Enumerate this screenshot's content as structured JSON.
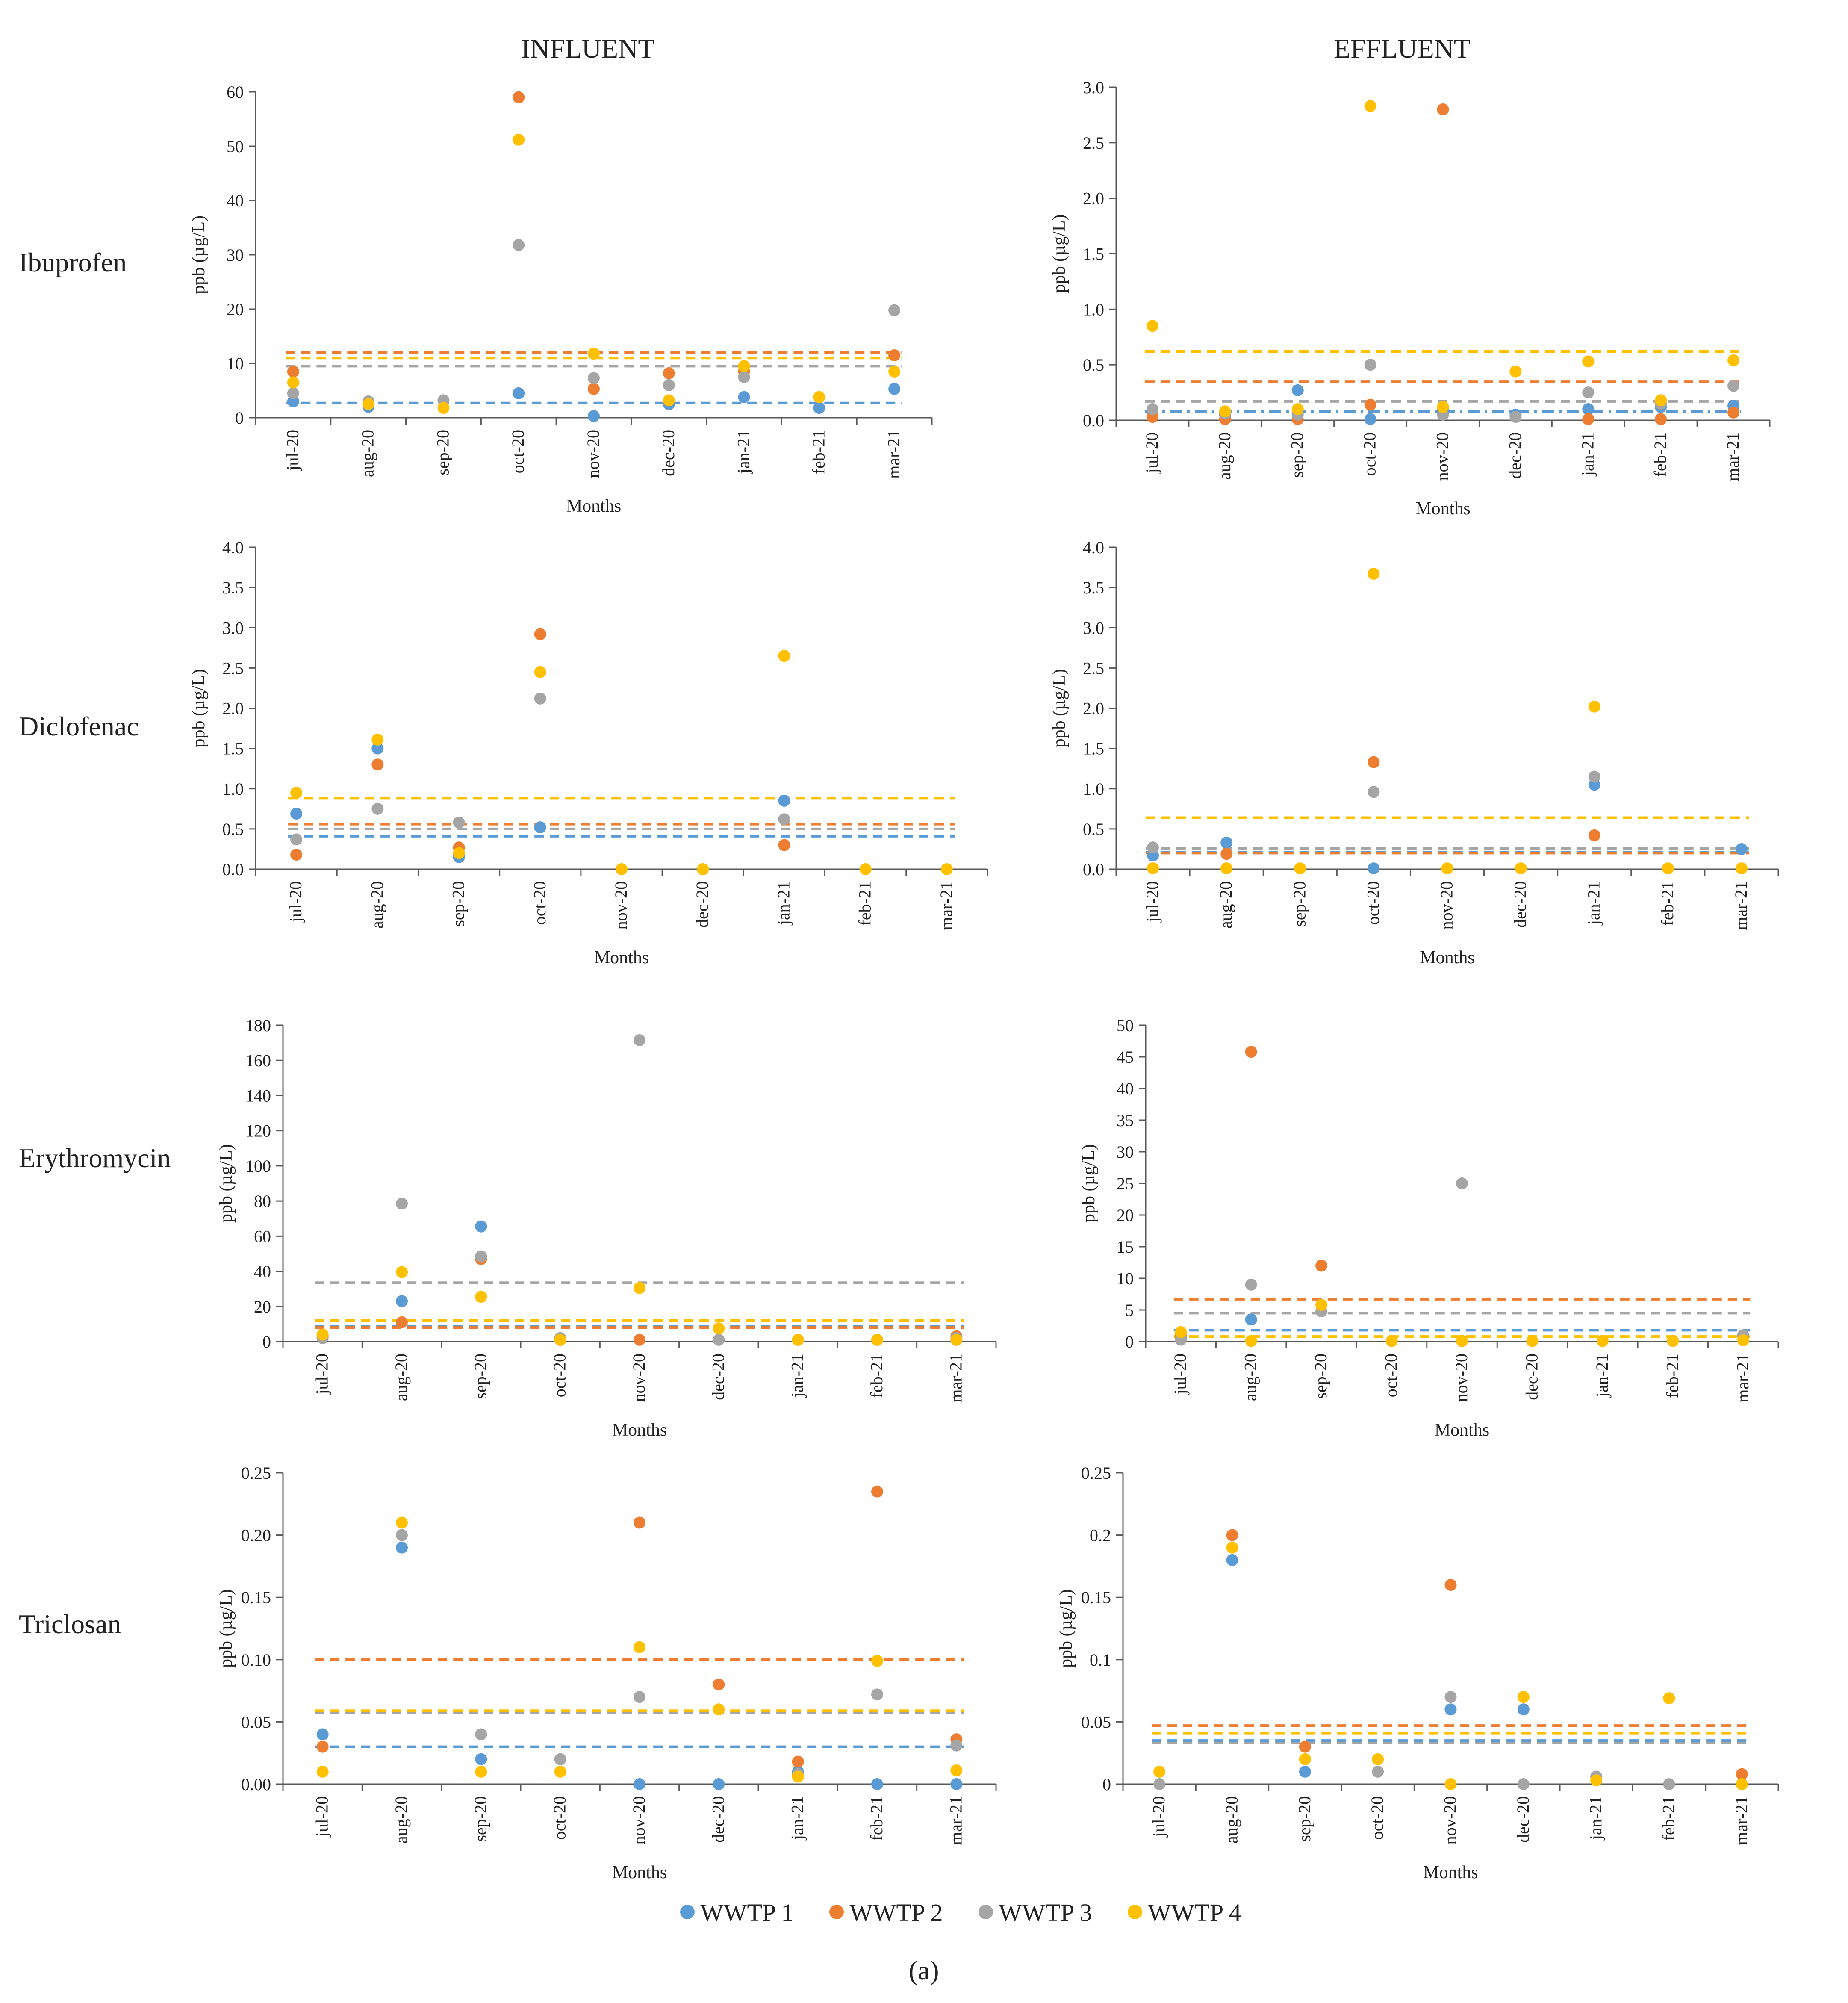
{
  "column_headers": [
    "INFLUENT",
    "EFFLUENT"
  ],
  "row_labels": [
    "Ibuprofen",
    "Diclofenac",
    "Erythromycin",
    "Triclosan"
  ],
  "caption": "(a)",
  "colors": {
    "WWTP 1": "#5b9bd5",
    "WWTP 2": "#ed7d31",
    "WWTP 3": "#a5a5a5",
    "WWTP 4": "#ffc000"
  },
  "legend": [
    "WWTP 1",
    "WWTP 2",
    "WWTP 3",
    "WWTP 4"
  ],
  "chart_data": [
    {
      "id": "ibuprofen-influent",
      "type": "scatter",
      "title": "Ibuprofen INFLUENT",
      "categories": [
        "jul-20",
        "aug-20",
        "sep-20",
        "oct-20",
        "nov-20",
        "dec-20",
        "jan-21",
        "feb-21",
        "mar-21"
      ],
      "xlabel": "Months",
      "ylabel": "ppb (µg/L)",
      "ylim": [
        0,
        60
      ],
      "yticks": [
        "0",
        "10",
        "20",
        "30",
        "40",
        "50",
        "60"
      ],
      "series": [
        {
          "name": "WWTP 1",
          "values": [
            3,
            2,
            null,
            4.5,
            0.3,
            2.5,
            3.8,
            1.8,
            5.3
          ],
          "mean": 2.7,
          "dash": "dash"
        },
        {
          "name": "WWTP 2",
          "values": [
            8.5,
            null,
            null,
            59,
            5.3,
            8.2,
            8.5,
            null,
            11.5
          ],
          "mean": 12,
          "dash": "dash"
        },
        {
          "name": "WWTP 3",
          "values": [
            4.5,
            3,
            3.2,
            31.8,
            7.3,
            6,
            7.5,
            null,
            19.8
          ],
          "mean": 9.5,
          "dash": "dash"
        },
        {
          "name": "WWTP 4",
          "values": [
            6.5,
            2.5,
            1.8,
            51.2,
            11.8,
            3.2,
            9.5,
            3.8,
            8.5
          ],
          "mean": 11,
          "dash": "dash"
        }
      ]
    },
    {
      "id": "ibuprofen-effluent",
      "type": "scatter",
      "title": "Ibuprofen EFFLUENT",
      "categories": [
        "jul-20",
        "aug-20",
        "sep-20",
        "oct-20",
        "nov-20",
        "dec-20",
        "jan-21",
        "feb-21",
        "mar-21"
      ],
      "xlabel": "Months",
      "ylabel": "ppb (µg/L)",
      "ylim": [
        0,
        3
      ],
      "yticks": [
        "0.0",
        "0.5",
        "1.0",
        "1.5",
        "2.0",
        "2.5",
        "3.0"
      ],
      "series": [
        {
          "name": "WWTP 1",
          "values": [
            0.06,
            0.05,
            0.27,
            0.01,
            0.1,
            0.05,
            0.1,
            0.12,
            0.13
          ],
          "mean": 0.08,
          "dash": "dashdot"
        },
        {
          "name": "WWTP 2",
          "values": [
            0.03,
            0.01,
            0.01,
            0.14,
            2.8,
            null,
            0.01,
            0.01,
            0.07
          ],
          "mean": 0.35,
          "dash": "dash"
        },
        {
          "name": "WWTP 3",
          "values": [
            0.1,
            0.06,
            0.05,
            0.5,
            0.05,
            0.03,
            0.25,
            0.15,
            0.31
          ],
          "mean": 0.17,
          "dash": "dash"
        },
        {
          "name": "WWTP 4",
          "values": [
            0.85,
            0.08,
            0.1,
            2.83,
            0.12,
            0.44,
            0.53,
            0.18,
            0.54
          ],
          "mean": 0.62,
          "dash": "dash"
        }
      ]
    },
    {
      "id": "diclofenac-influent",
      "type": "scatter",
      "title": "Diclofenac INFLUENT",
      "categories": [
        "jul-20",
        "aug-20",
        "sep-20",
        "oct-20",
        "nov-20",
        "dec-20",
        "jan-21",
        "feb-21",
        "mar-21"
      ],
      "xlabel": "Months",
      "ylabel": "ppb (µg/L)",
      "ylim": [
        0,
        4
      ],
      "yticks": [
        "0.0",
        "0.5",
        "1.0",
        "1.5",
        "2.0",
        "2.5",
        "3.0",
        "3.5",
        "4.0"
      ],
      "series": [
        {
          "name": "WWTP 1",
          "values": [
            0.69,
            1.5,
            0.15,
            0.52,
            null,
            null,
            0.85,
            null,
            null
          ],
          "mean": 0.41,
          "dash": "dash"
        },
        {
          "name": "WWTP 2",
          "values": [
            0.18,
            1.3,
            0.27,
            2.92,
            null,
            null,
            0.3,
            null,
            null
          ],
          "mean": 0.56,
          "dash": "dash"
        },
        {
          "name": "WWTP 3",
          "values": [
            0.37,
            0.75,
            0.58,
            2.12,
            null,
            null,
            0.62,
            null,
            null
          ],
          "mean": 0.5,
          "dash": "dash"
        },
        {
          "name": "WWTP 4",
          "values": [
            0.95,
            1.61,
            0.2,
            2.45,
            0,
            0,
            2.65,
            0,
            0
          ],
          "mean": 0.88,
          "dash": "dash"
        }
      ]
    },
    {
      "id": "diclofenac-effluent",
      "type": "scatter",
      "title": "Diclofenac EFFLUENT",
      "categories": [
        "jul-20",
        "aug-20",
        "sep-20",
        "oct-20",
        "nov-20",
        "dec-20",
        "jan-21",
        "feb-21",
        "mar-21"
      ],
      "xlabel": "Months",
      "ylabel": "ppb (µg/L)",
      "ylim": [
        0,
        4
      ],
      "yticks": [
        "0.0",
        "0.5",
        "1.0",
        "1.5",
        "2.0",
        "2.5",
        "3.0",
        "3.5",
        "4.0"
      ],
      "series": [
        {
          "name": "WWTP 1",
          "values": [
            0.17,
            0.33,
            null,
            0.01,
            null,
            null,
            1.05,
            null,
            0.25
          ],
          "mean": 0.21,
          "dash": "dash"
        },
        {
          "name": "WWTP 2",
          "values": [
            null,
            0.19,
            null,
            1.33,
            null,
            null,
            0.42,
            null,
            null
          ],
          "mean": 0.2,
          "dash": "dash"
        },
        {
          "name": "WWTP 3",
          "values": [
            0.27,
            null,
            null,
            0.96,
            null,
            null,
            1.15,
            null,
            null
          ],
          "mean": 0.26,
          "dash": "dash"
        },
        {
          "name": "WWTP 4",
          "values": [
            0.01,
            0.01,
            0.01,
            3.67,
            0.01,
            0.01,
            2.02,
            0.01,
            0.01
          ],
          "mean": 0.64,
          "dash": "dash"
        }
      ]
    },
    {
      "id": "erythromycin-influent",
      "type": "scatter",
      "title": "Erythromycin INFLUENT",
      "categories": [
        "jul-20",
        "aug-20",
        "sep-20",
        "oct-20",
        "nov-20",
        "dec-20",
        "jan-21",
        "feb-21",
        "mar-21"
      ],
      "xlabel": "Months",
      "ylabel": "ppb (µg/L)",
      "ylim": [
        0,
        180
      ],
      "yticks": [
        "0",
        "20",
        "40",
        "60",
        "80",
        "100",
        "120",
        "140",
        "160",
        "180"
      ],
      "series": [
        {
          "name": "WWTP 1",
          "values": [
            3,
            23,
            65.5,
            1,
            null,
            null,
            1,
            1,
            1
          ],
          "mean": 9,
          "dash": "dash"
        },
        {
          "name": "WWTP 2",
          "values": [
            2,
            11,
            47,
            1,
            1,
            null,
            null,
            null,
            3
          ],
          "mean": 8,
          "dash": "dash"
        },
        {
          "name": "WWTP 3",
          "values": [
            2,
            78.5,
            48.5,
            2,
            171.5,
            1,
            null,
            null,
            2
          ],
          "mean": 33.5,
          "dash": "dash"
        },
        {
          "name": "WWTP 4",
          "values": [
            4,
            39.5,
            25.5,
            1,
            30.5,
            7.5,
            1,
            1,
            1
          ],
          "mean": 12,
          "dash": "dash"
        }
      ]
    },
    {
      "id": "erythromycin-effluent",
      "type": "scatter",
      "title": "Erythromycin EFFLUENT",
      "categories": [
        "jul-20",
        "aug-20",
        "sep-20",
        "oct-20",
        "nov-20",
        "dec-20",
        "jan-21",
        "feb-21",
        "mar-21"
      ],
      "xlabel": "Months",
      "ylabel": "ppb (µg/L)",
      "ylim": [
        0,
        50
      ],
      "yticks": [
        "0",
        "5",
        "10",
        "15",
        "20",
        "25",
        "30",
        "35",
        "40",
        "45",
        "50"
      ],
      "series": [
        {
          "name": "WWTP 1",
          "values": [
            0.5,
            3.5,
            null,
            null,
            null,
            null,
            null,
            null,
            null
          ],
          "mean": 1.8,
          "dash": "dash"
        },
        {
          "name": "WWTP 2",
          "values": [
            1,
            45.8,
            12,
            null,
            null,
            null,
            null,
            null,
            1
          ],
          "mean": 6.7,
          "dash": "dash"
        },
        {
          "name": "WWTP 3",
          "values": [
            0.3,
            9,
            4.8,
            null,
            25,
            null,
            null,
            null,
            1
          ],
          "mean": 4.5,
          "dash": "dash"
        },
        {
          "name": "WWTP 4",
          "values": [
            1.5,
            0.1,
            5.8,
            0.1,
            0.1,
            0.1,
            0.1,
            0.1,
            0.2
          ],
          "mean": 0.8,
          "dash": "dash"
        }
      ]
    },
    {
      "id": "triclosan-influent",
      "type": "scatter",
      "title": "Triclosan INFLUENT",
      "categories": [
        "jul-20",
        "aug-20",
        "sep-20",
        "oct-20",
        "nov-20",
        "dec-20",
        "jan-21",
        "feb-21",
        "mar-21"
      ],
      "xlabel": "Months",
      "ylabel": "ppb (µg/L)",
      "ylim": [
        0,
        0.25
      ],
      "yticks": [
        "0.00",
        "0.05",
        "0.10",
        "0.15",
        "0.20",
        "0.25"
      ],
      "series": [
        {
          "name": "WWTP 1",
          "values": [
            0.04,
            0.19,
            0.02,
            null,
            0,
            0,
            0.01,
            0,
            0
          ],
          "mean": 0.03,
          "dash": "dash"
        },
        {
          "name": "WWTP 2",
          "values": [
            0.03,
            null,
            null,
            null,
            0.21,
            0.08,
            0.018,
            0.235,
            0.036
          ],
          "mean": 0.1,
          "dash": "dash"
        },
        {
          "name": "WWTP 3",
          "values": [
            null,
            0.2,
            0.04,
            0.02,
            0.07,
            null,
            0.008,
            0.072,
            0.031
          ],
          "mean": 0.057,
          "dash": "dash"
        },
        {
          "name": "WWTP 4",
          "values": [
            0.01,
            0.21,
            0.01,
            0.01,
            0.11,
            0.06,
            0.006,
            0.099,
            0.011
          ],
          "mean": 0.059,
          "dash": "dash"
        }
      ]
    },
    {
      "id": "triclosan-effluent",
      "type": "scatter",
      "title": "Triclosan EFFLUENT",
      "categories": [
        "jul-20",
        "aug-20",
        "sep-20",
        "oct-20",
        "nov-20",
        "dec-20",
        "jan-21",
        "feb-21",
        "mar-21"
      ],
      "xlabel": "Months",
      "ylabel": "ppb (µg/L)",
      "ylim": [
        0,
        0.25
      ],
      "yticks": [
        "0",
        "0.05",
        "0.1",
        "0.15",
        "0.2",
        "0.25"
      ],
      "series": [
        {
          "name": "WWTP 1",
          "values": [
            null,
            0.18,
            0.01,
            null,
            0.06,
            0.06,
            0.006,
            null,
            null
          ],
          "mean": 0.035,
          "dash": "dash"
        },
        {
          "name": "WWTP 2",
          "values": [
            null,
            0.2,
            0.03,
            null,
            0.16,
            null,
            null,
            null,
            0.008
          ],
          "mean": 0.047,
          "dash": "dash"
        },
        {
          "name": "WWTP 3",
          "values": [
            0,
            null,
            null,
            0.01,
            0.07,
            0,
            0.006,
            0,
            null
          ],
          "mean": 0.033,
          "dash": "dash"
        },
        {
          "name": "WWTP 4",
          "values": [
            0.01,
            0.19,
            0.02,
            0.02,
            0,
            0.07,
            0.003,
            0.069,
            0
          ],
          "mean": 0.041,
          "dash": "dash"
        }
      ]
    }
  ]
}
